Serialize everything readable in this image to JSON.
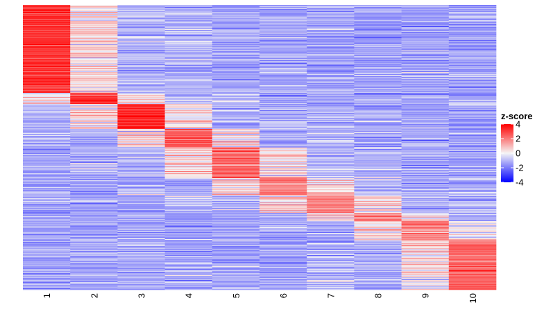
{
  "chart_data": {
    "type": "heatmap",
    "title": "",
    "xlabel": "",
    "ylabel": "",
    "columns": [
      "1",
      "2",
      "3",
      "4",
      "5",
      "6",
      "7",
      "8",
      "9",
      "10"
    ],
    "n_rows": 411,
    "value_range": [
      -4,
      4
    ],
    "color_scale": {
      "low": "#0000ff",
      "mid": "#f5f5f5",
      "high": "#ff0000"
    },
    "legend": {
      "title": "z-score",
      "ticks": [
        4,
        2,
        0,
        -2,
        -4
      ],
      "tick_labels": [
        "4",
        "2",
        "0",
        "-2",
        "-4"
      ],
      "placement": "right"
    },
    "clusters": [
      {
        "column": "1",
        "row_start": 0,
        "row_end": 127,
        "mean_high": 3.0
      },
      {
        "column": "2",
        "row_start": 127,
        "row_end": 143,
        "mean_high": 2.8
      },
      {
        "column": "3",
        "row_start": 143,
        "row_end": 179,
        "mean_high": 3.2
      },
      {
        "column": "4",
        "row_start": 179,
        "row_end": 205,
        "mean_high": 2.4
      },
      {
        "column": "5",
        "row_start": 205,
        "row_end": 250,
        "mean_high": 2.0
      },
      {
        "column": "6",
        "row_start": 250,
        "row_end": 275,
        "mean_high": 1.8
      },
      {
        "column": "7",
        "row_start": 275,
        "row_end": 300,
        "mean_high": 1.7
      },
      {
        "column": "8",
        "row_start": 300,
        "row_end": 312,
        "mean_high": 2.0
      },
      {
        "column": "9",
        "row_start": 312,
        "row_end": 340,
        "mean_high": 1.8
      },
      {
        "column": "10",
        "row_start": 340,
        "row_end": 411,
        "mean_high": 2.2
      }
    ],
    "grid": false
  }
}
